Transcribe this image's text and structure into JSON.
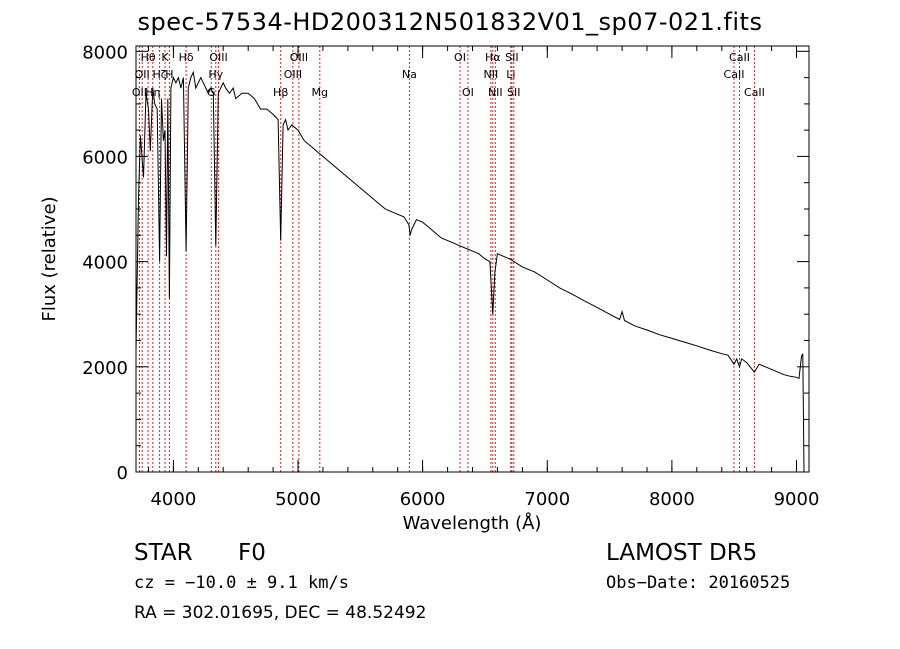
{
  "chart_data": {
    "type": "line",
    "title": "spec-57534-HD200312N501832V01_sp07-021.fits",
    "xlabel": "Wavelength (Å)",
    "ylabel": "Flux (relative)",
    "xlim": [
      3700,
      9100
    ],
    "ylim": [
      0,
      8100
    ],
    "xticks": [
      4000,
      5000,
      6000,
      7000,
      8000,
      9000
    ],
    "yticks": [
      0,
      2000,
      4000,
      6000,
      8000
    ],
    "series": [
      {
        "x": [
          3700,
          3720,
          3735,
          3760,
          3780,
          3800,
          3815,
          3835,
          3850,
          3870,
          3889,
          3905,
          3920,
          3933,
          3945,
          3955,
          3968,
          3980,
          3990,
          4000,
          4020,
          4040,
          4060,
          4080,
          4102,
          4120,
          4140,
          4160,
          4180,
          4200,
          4220,
          4240,
          4260,
          4280,
          4300,
          4320,
          4340,
          4360,
          4380,
          4400,
          4420,
          4450,
          4480,
          4500,
          4550,
          4600,
          4650,
          4700,
          4750,
          4800,
          4840,
          4861,
          4880,
          4900,
          4920,
          4950,
          5000,
          5050,
          5100,
          5150,
          5200,
          5250,
          5300,
          5350,
          5400,
          5450,
          5500,
          5550,
          5600,
          5650,
          5700,
          5750,
          5800,
          5850,
          5890,
          5900,
          5910,
          5950,
          6000,
          6050,
          6100,
          6150,
          6200,
          6250,
          6300,
          6350,
          6400,
          6450,
          6500,
          6540,
          6563,
          6580,
          6600,
          6650,
          6700,
          6800,
          6900,
          7000,
          7100,
          7200,
          7300,
          7400,
          7500,
          7580,
          7600,
          7620,
          7700,
          7800,
          7900,
          8000,
          8100,
          8200,
          8300,
          8400,
          8450,
          8498,
          8520,
          8542,
          8560,
          8600,
          8662,
          8700,
          8750,
          8800,
          8850,
          8900,
          8950,
          9000,
          9020,
          9040,
          9050,
          9060
        ],
        "y": [
          2300,
          5200,
          6400,
          5600,
          7200,
          6900,
          6100,
          7300,
          7000,
          6900,
          4000,
          7100,
          6300,
          6500,
          4100,
          7100,
          3300,
          7300,
          7400,
          7500,
          7400,
          7500,
          7300,
          7500,
          4200,
          7300,
          7500,
          7600,
          7300,
          7400,
          7500,
          7400,
          7300,
          7200,
          7300,
          7200,
          4300,
          7200,
          7300,
          7400,
          7300,
          7200,
          7300,
          7100,
          7200,
          7200,
          7100,
          6900,
          6900,
          6800,
          6700,
          4400,
          6600,
          6700,
          6500,
          6600,
          6500,
          6300,
          6200,
          6100,
          6000,
          5900,
          5800,
          5700,
          5600,
          5500,
          5400,
          5300,
          5200,
          5100,
          5000,
          4950,
          4900,
          4850,
          4700,
          4500,
          4600,
          4800,
          4750,
          4650,
          4550,
          4450,
          4400,
          4350,
          4300,
          4250,
          4200,
          4150,
          4050,
          4000,
          3000,
          3800,
          4150,
          4100,
          4050,
          3900,
          3800,
          3650,
          3500,
          3380,
          3250,
          3130,
          3000,
          2900,
          3050,
          2880,
          2780,
          2700,
          2610,
          2540,
          2470,
          2400,
          2320,
          2250,
          2220,
          2050,
          2150,
          2000,
          2150,
          2080,
          1900,
          2050,
          2000,
          1950,
          1900,
          1850,
          1820,
          1800,
          1780,
          2200,
          2250,
          0
        ]
      }
    ],
    "lines": [
      {
        "wl": 3727,
        "label": "OII",
        "row": 3
      },
      {
        "wl": 3750,
        "label": "OII",
        "row": 2
      },
      {
        "wl": 3797,
        "label": "Hθ",
        "row": 1
      },
      {
        "wl": 3835,
        "label": "Hη",
        "row": 3
      },
      {
        "wl": 3889,
        "label": "Hζ",
        "row": 2
      },
      {
        "wl": 3933,
        "label": "K",
        "row": 1
      },
      {
        "wl": 3968,
        "label": "H",
        "row": 2
      },
      {
        "wl": 4102,
        "label": "Hδ",
        "row": 1
      },
      {
        "wl": 4304,
        "label": "G",
        "row": 3
      },
      {
        "wl": 4340,
        "label": "Hγ",
        "row": 2
      },
      {
        "wl": 4363,
        "label": "OIII",
        "row": 1
      },
      {
        "wl": 4861,
        "label": "Hβ",
        "row": 3
      },
      {
        "wl": 4959,
        "label": "OIII",
        "row": 2
      },
      {
        "wl": 5007,
        "label": "OIII",
        "row": 1
      },
      {
        "wl": 5175,
        "label": "Mg",
        "row": 3
      },
      {
        "wl": 5894,
        "label": "Na",
        "row": 2
      },
      {
        "wl": 6300,
        "label": "OI",
        "row": 1
      },
      {
        "wl": 6363,
        "label": "OI",
        "row": 3
      },
      {
        "wl": 6548,
        "label": "NII",
        "row": 2
      },
      {
        "wl": 6563,
        "label": "Hα",
        "row": 1
      },
      {
        "wl": 6583,
        "label": "NII",
        "row": 3
      },
      {
        "wl": 6707,
        "label": "Li",
        "row": 2
      },
      {
        "wl": 6716,
        "label": "SII",
        "row": 1
      },
      {
        "wl": 6731,
        "label": "SII",
        "row": 3
      },
      {
        "wl": 8498,
        "label": "CaII",
        "row": 2
      },
      {
        "wl": 8542,
        "label": "CaII",
        "row": 1
      },
      {
        "wl": 8662,
        "label": "CaII",
        "row": 3
      }
    ]
  },
  "info": {
    "object_class": "STAR",
    "subclass": "F0",
    "survey": "LAMOST DR5",
    "cz": "cz = −10.0 ± 9.1 km/s",
    "obs_date": "Obs−Date: 20160525",
    "radec": "RA = 302.01695, DEC =  48.52492"
  }
}
